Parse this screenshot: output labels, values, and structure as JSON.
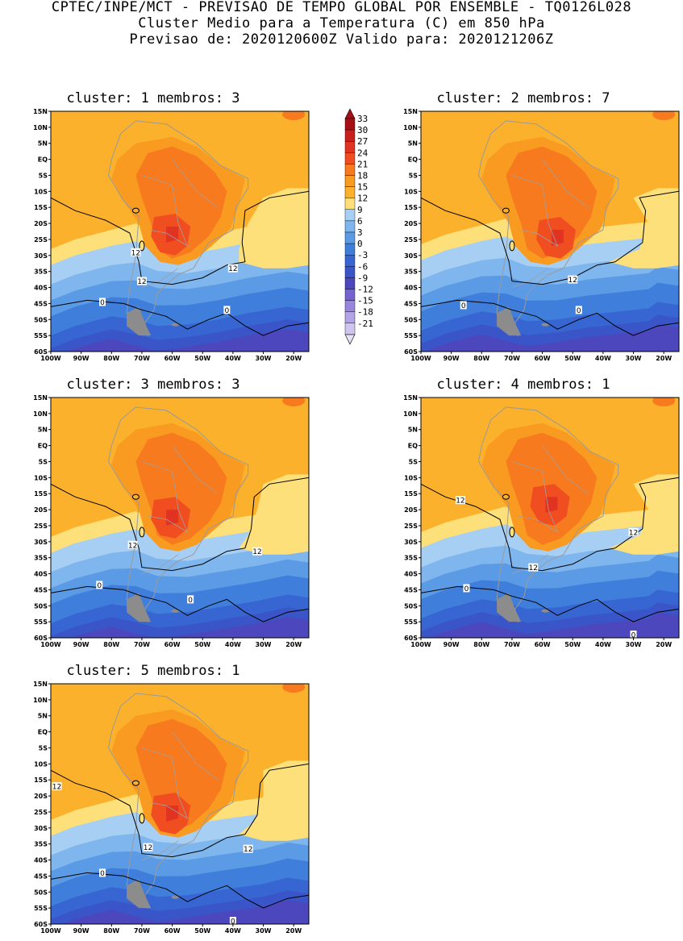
{
  "header": {
    "line1": "CPTEC/INPE/MCT - PREVISAO DE TEMPO GLOBAL POR ENSEMBLE - TQ0126L028",
    "line2": "Cluster Medio para a Temperatura (C) em 850 hPa",
    "line3": "Previsao de: 2020120600Z   Valido para: 2020121206Z"
  },
  "axes": {
    "lat_ticks": [
      "15N",
      "10N",
      "5N",
      "EQ",
      "5S",
      "10S",
      "15S",
      "20S",
      "25S",
      "30S",
      "35S",
      "40S",
      "45S",
      "50S",
      "55S",
      "60S"
    ],
    "lon_ticks": [
      "100W",
      "90W",
      "80W",
      "70W",
      "60W",
      "50W",
      "40W",
      "30W",
      "20W"
    ]
  },
  "colorbar": {
    "labels": [
      "33",
      "30",
      "27",
      "24",
      "21",
      "18",
      "15",
      "12",
      "9",
      "6",
      "3",
      "0",
      "-3",
      "-6",
      "-9",
      "-12",
      "-15",
      "-18",
      "-21"
    ],
    "colors": [
      "#a50f15",
      "#c8201e",
      "#e03322",
      "#f04e20",
      "#f77a1e",
      "#f99a21",
      "#fbb12c",
      "#fde07a",
      "#a7cff3",
      "#80b6ee",
      "#5b9be6",
      "#3f7fdb",
      "#3766d2",
      "#3a55c8",
      "#4c47bd",
      "#7564cf",
      "#9886de",
      "#b3a4e8",
      "#cfc6f0"
    ]
  },
  "panels": [
    {
      "title": "cluster: 1   membros: 3",
      "labels12": [
        "12",
        "12",
        "12"
      ],
      "labels0": [
        "0",
        "0"
      ]
    },
    {
      "title": "cluster: 2   membros: 7",
      "labels12": [
        "12"
      ],
      "labels0": [
        "0",
        "0"
      ]
    },
    {
      "title": "cluster: 3   membros: 3",
      "labels12": [
        "12",
        "12"
      ],
      "labels0": [
        "0",
        "0"
      ]
    },
    {
      "title": "cluster: 4   membros: 1",
      "labels12": [
        "12",
        "12",
        "12"
      ],
      "labels0": [
        "0",
        "0"
      ]
    },
    {
      "title": "cluster: 5   membros: 1",
      "labels12": [
        "12",
        "12",
        "12"
      ],
      "labels0": [
        "0",
        "0"
      ]
    }
  ]
}
